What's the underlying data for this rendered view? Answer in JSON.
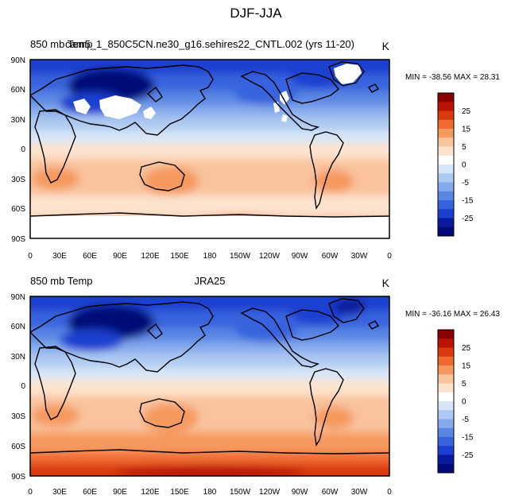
{
  "figure": {
    "title": "DJF-JJA"
  },
  "panels": [
    {
      "left_label": "850 mb Temp",
      "title": "cam5_1_850C5CN.ne30_g16.sehires22_CNTL.002 (yrs 11-20)",
      "units": "K",
      "stats": "MIN = -38.56 MAX =  28.31",
      "lat_ticks": [
        "90N",
        "60N",
        "30N",
        "0",
        "30S",
        "60S",
        "90S"
      ],
      "lon_ticks": [
        "0",
        "30E",
        "60E",
        "90E",
        "120E",
        "150E",
        "180",
        "150W",
        "120W",
        "90W",
        "60W",
        "30W",
        "0"
      ]
    },
    {
      "left_label": "850 mb Temp",
      "title": "JRA25",
      "units": "K",
      "stats": "MIN = -36.16 MAX =  26.43",
      "lat_ticks": [
        "90N",
        "60N",
        "30N",
        "0",
        "30S",
        "60S",
        "90S"
      ],
      "lon_ticks": [
        "0",
        "30E",
        "60E",
        "90E",
        "120E",
        "150E",
        "180",
        "150W",
        "120W",
        "90W",
        "60W",
        "30W",
        "0"
      ]
    }
  ],
  "colorbar": {
    "labels": [
      "25",
      "15",
      "5",
      "0",
      "-5",
      "-15",
      "-25"
    ],
    "colors": [
      "#8a0000",
      "#b81400",
      "#d93a0c",
      "#ef6a30",
      "#f6995f",
      "#f9c39d",
      "#fde3cd",
      "#ffffff",
      "#d6e6f8",
      "#adc9f1",
      "#84aaeb",
      "#5a86e3",
      "#3764de",
      "#1c3fcf",
      "#0a1a9e",
      "#000a78"
    ]
  },
  "colors": {
    "missing": "#ffffff",
    "coast": "#000000"
  }
}
